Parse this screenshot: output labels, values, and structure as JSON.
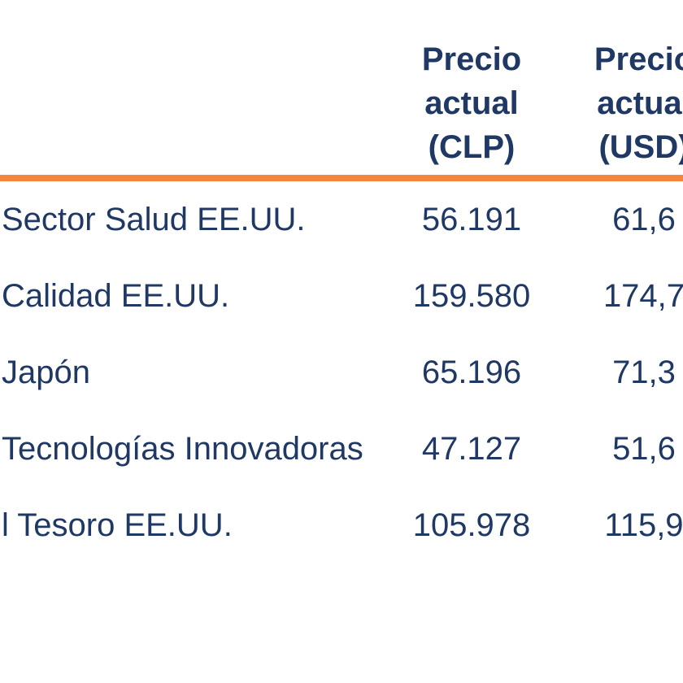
{
  "page": {
    "background": "#FFFFFF",
    "description_colors": {
      "text_navy": "#1F3864",
      "divider_orange": "#F6843C"
    }
  },
  "table": {
    "header": {
      "clp": {
        "l1": "Precio",
        "l2": "actual",
        "l3": "(CLP)"
      },
      "usd": {
        "l1": "Precio",
        "l2": "actual",
        "l3": "(USD)"
      }
    },
    "rows": [
      {
        "name": "Sector Salud EE.UU.",
        "clp": "56.191",
        "usd": "61,6"
      },
      {
        "name": "Calidad EE.UU.",
        "clp": "159.580",
        "usd": "174,7"
      },
      {
        "name": "Japón",
        "clp": "65.196",
        "usd": "71,3"
      },
      {
        "name": "Tecnologías Innovadoras",
        "clp": "47.127",
        "usd": "51,6"
      },
      {
        "name": "l Tesoro EE.UU.",
        "clp": "105.978",
        "usd": "115,9"
      }
    ]
  }
}
